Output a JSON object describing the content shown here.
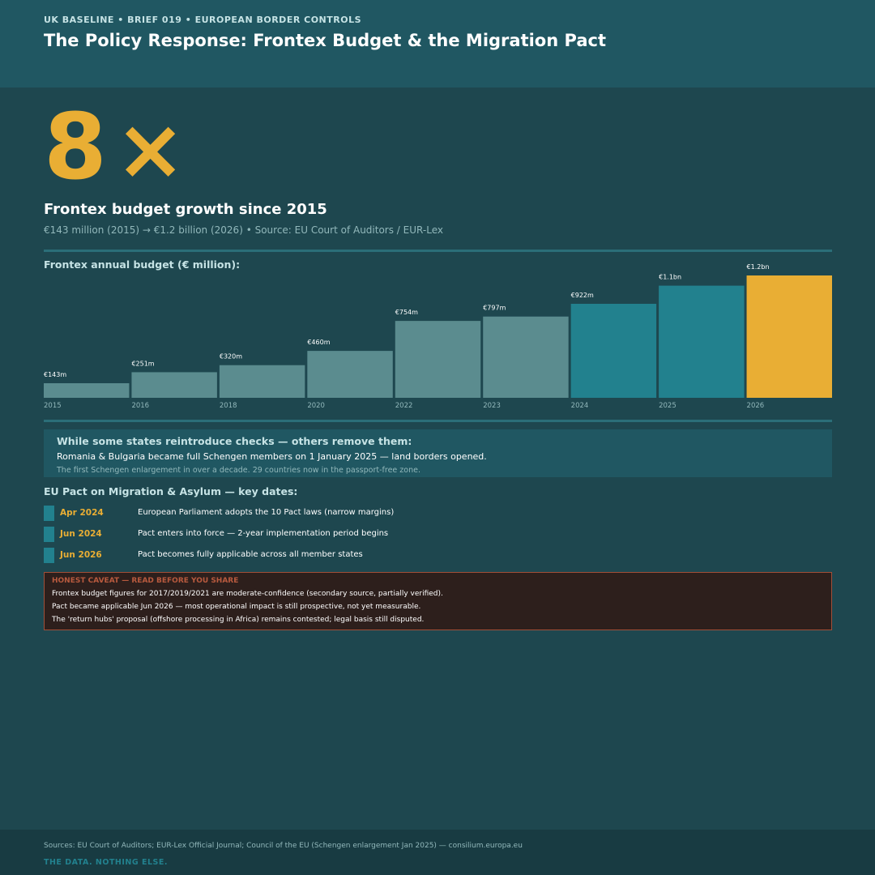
{
  "header": {
    "kicker": "UK BASELINE  •  BRIEF 019  •  EUROPEAN BORDER CONTROLS",
    "title": "The Policy Response: Frontex Budget & the Migration Pact"
  },
  "stat": {
    "number": "8",
    "multiplier": "×",
    "title": "Frontex budget growth since 2015",
    "subtitle": "€143 million (2015)  →  €1.2 billion (2026)  •  Source: EU Court of Auditors / EUR-Lex"
  },
  "chart_section": {
    "label": "Frontex annual budget (€ million):"
  },
  "chart_data": {
    "type": "bar",
    "title": "Frontex annual budget (€ million):",
    "categories": [
      "2015",
      "2016",
      "2018",
      "2020",
      "2022",
      "2023",
      "2024",
      "2025",
      "2026"
    ],
    "values": [
      143,
      251,
      320,
      460,
      754,
      797,
      922,
      1100,
      1200
    ],
    "value_labels": [
      "€143m",
      "€251m",
      "€320m",
      "€460m",
      "€754m",
      "€797m",
      "€922m",
      "€1.1bn",
      "€1.2bn"
    ],
    "ylim": [
      0,
      1200
    ],
    "grid": false,
    "colors": [
      "#5b8c8f",
      "#5b8c8f",
      "#5b8c8f",
      "#5b8c8f",
      "#5b8c8f",
      "#5b8c8f",
      "#22818e",
      "#22818e",
      "#e9ae34"
    ]
  },
  "schengen_note": {
    "title": "While some states reintroduce checks — others remove them:",
    "main": "Romania & Bulgaria became full Schengen members on 1 January 2025 — land borders opened.",
    "small": "The first Schengen enlargement in over a decade. 29 countries now in the passport-free zone."
  },
  "pact": {
    "label": "EU Pact on Migration & Asylum — key dates:",
    "dates": [
      {
        "date": "Apr 2024",
        "text": "European Parliament adopts the 10 Pact laws (narrow margins)"
      },
      {
        "date": "Jun 2024",
        "text": "Pact enters into force — 2-year implementation period begins"
      },
      {
        "date": "Jun 2026",
        "text": "Pact becomes fully applicable across all member states"
      }
    ]
  },
  "caveat": {
    "title": "HONEST CAVEAT — READ BEFORE YOU SHARE",
    "lines": [
      "Frontex budget figures for 2017/2019/2021 are moderate-confidence (secondary source, partially verified).",
      "Pact became applicable Jun 2026 — most operational impact is still prospective, not yet measurable.",
      "The 'return hubs' proposal (offshore processing in Africa) remains contested; legal basis still disputed."
    ]
  },
  "footer": {
    "sources": "Sources: EU Court of Auditors; EUR-Lex Official Journal; Council of the EU (Schengen enlargement Jan 2025) — consilium.europa.eu",
    "tagline": "THE DATA. NOTHING ELSE."
  },
  "colors": {
    "background": "#1e474f",
    "header": "#205762",
    "accent": "#e9ae34",
    "teal": "#22818e",
    "muted_bar": "#5b8c8f",
    "caveat_border": "#a24f38"
  }
}
